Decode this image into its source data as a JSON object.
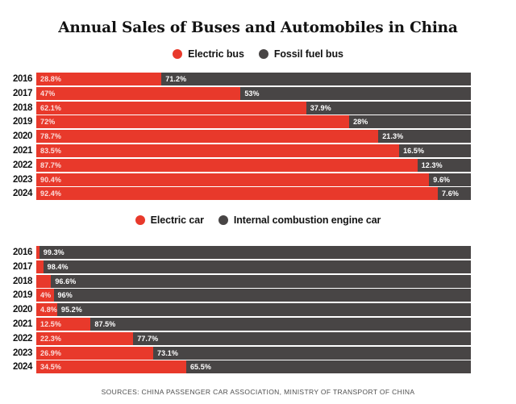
{
  "title": "Annual Sales of Buses and Automobiles in China",
  "source": "SOURCES: CHINA PASSENGER CAR ASSOCIATION, MINISTRY OF TRANSPORT OF CHINA",
  "colors": {
    "electric": "#e8392b",
    "conventional": "#484545",
    "background": "#ffffff",
    "text": "#131313"
  },
  "chart_data": [
    {
      "type": "bar",
      "orientation": "horizontal",
      "stacked": true,
      "legend_position": "top",
      "grid": false,
      "xlim": [
        0,
        100
      ],
      "categories": [
        "2016",
        "2017",
        "2018",
        "2019",
        "2020",
        "2021",
        "2022",
        "2023",
        "2024"
      ],
      "series": [
        {
          "key": "electric-bus",
          "name": "Electric bus",
          "color": "#e8392b",
          "values": [
            28.8,
            47,
            62.1,
            72,
            78.7,
            83.5,
            87.7,
            90.4,
            92.4
          ],
          "labels": [
            "28.8%",
            "47%",
            "62.1%",
            "72%",
            "78.7%",
            "83.5%",
            "87.7%",
            "90.4%",
            "92.4%"
          ]
        },
        {
          "key": "fossil-fuel-bus",
          "name": "Fossil fuel bus",
          "color": "#484545",
          "values": [
            71.2,
            53,
            37.9,
            28,
            21.3,
            16.5,
            12.3,
            9.6,
            7.6
          ],
          "labels": [
            "71.2%",
            "53%",
            "37.9%",
            "28%",
            "21.3%",
            "16.5%",
            "12.3%",
            "9.6%",
            "7.6%"
          ]
        }
      ]
    },
    {
      "type": "bar",
      "orientation": "horizontal",
      "stacked": true,
      "legend_position": "top",
      "grid": false,
      "xlim": [
        0,
        100
      ],
      "categories": [
        "2016",
        "2017",
        "2018",
        "2019",
        "2020",
        "2021",
        "2022",
        "2023",
        "2024"
      ],
      "series": [
        {
          "key": "electric-car",
          "name": "Electric car",
          "color": "#e8392b",
          "values": [
            0.7,
            1.6,
            3.4,
            4,
            4.8,
            12.5,
            22.3,
            26.9,
            34.5
          ],
          "labels": [
            "",
            "",
            "",
            "4%",
            "4.8%",
            "12.5%",
            "22.3%",
            "26.9%",
            "34.5%"
          ]
        },
        {
          "key": "internal-combustion-engine-car",
          "name": "Internal combustion engine car",
          "color": "#484545",
          "values": [
            99.3,
            98.4,
            96.6,
            96,
            95.2,
            87.5,
            77.7,
            73.1,
            65.5
          ],
          "labels": [
            "99.3%",
            "98.4%",
            "96.6%",
            "96%",
            "95.2%",
            "87.5%",
            "77.7%",
            "73.1%",
            "65.5%"
          ]
        }
      ]
    }
  ]
}
